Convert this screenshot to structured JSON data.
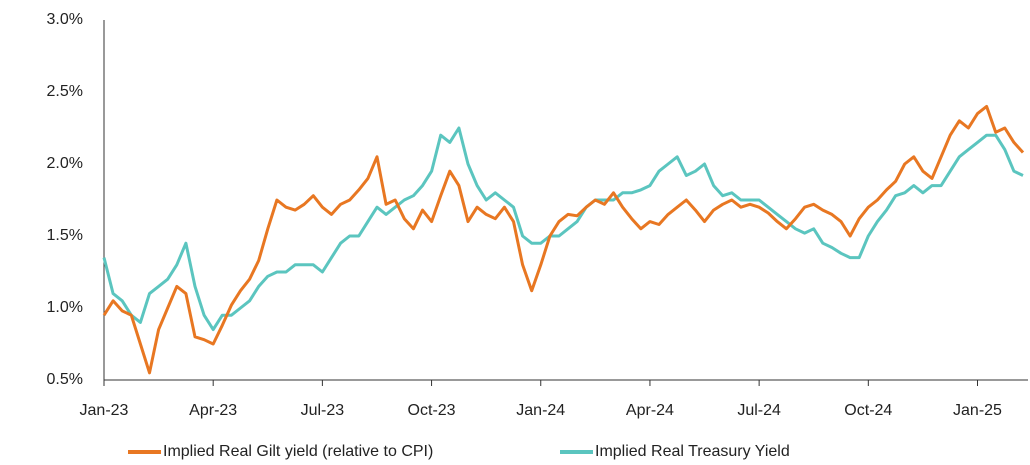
{
  "chart_data": {
    "type": "line",
    "categories": [
      "Jan-23",
      null,
      null,
      null,
      null,
      null,
      null,
      null,
      null,
      null,
      null,
      null,
      "Apr-23",
      null,
      null,
      null,
      null,
      null,
      null,
      null,
      null,
      null,
      null,
      null,
      "Jul-23",
      null,
      null,
      null,
      null,
      null,
      null,
      null,
      null,
      null,
      null,
      null,
      "Oct-23",
      null,
      null,
      null,
      null,
      null,
      null,
      null,
      null,
      null,
      null,
      null,
      "Jan-24",
      null,
      null,
      null,
      null,
      null,
      null,
      null,
      null,
      null,
      null,
      null,
      "Apr-24",
      null,
      null,
      null,
      null,
      null,
      null,
      null,
      null,
      null,
      null,
      null,
      "Jul-24",
      null,
      null,
      null,
      null,
      null,
      null,
      null,
      null,
      null,
      null,
      null,
      "Oct-24",
      null,
      null,
      null,
      null,
      null,
      null,
      null,
      null,
      null,
      null,
      null,
      "Jan-25",
      null,
      null,
      null,
      null,
      null
    ],
    "series": [
      {
        "name": "Implied Real Gilt yield (relative to CPI)",
        "color": "#e87722",
        "values": [
          0.95,
          1.05,
          0.98,
          0.95,
          0.75,
          0.55,
          0.85,
          1.0,
          1.15,
          1.1,
          0.8,
          0.78,
          0.75,
          0.88,
          1.02,
          1.12,
          1.2,
          1.33,
          1.55,
          1.75,
          1.7,
          1.68,
          1.72,
          1.78,
          1.7,
          1.65,
          1.72,
          1.75,
          1.82,
          1.9,
          2.05,
          1.72,
          1.75,
          1.62,
          1.55,
          1.68,
          1.6,
          1.78,
          1.95,
          1.85,
          1.6,
          1.7,
          1.65,
          1.62,
          1.7,
          1.6,
          1.3,
          1.12,
          1.3,
          1.5,
          1.6,
          1.65,
          1.64,
          1.7,
          1.75,
          1.72,
          1.8,
          1.7,
          1.62,
          1.55,
          1.6,
          1.58,
          1.65,
          1.7,
          1.75,
          1.68,
          1.6,
          1.68,
          1.72,
          1.75,
          1.7,
          1.72,
          1.7,
          1.66,
          1.6,
          1.55,
          1.62,
          1.7,
          1.72,
          1.68,
          1.65,
          1.6,
          1.5,
          1.62,
          1.7,
          1.75,
          1.82,
          1.88,
          2.0,
          2.05,
          1.95,
          1.9,
          2.05,
          2.2,
          2.3,
          2.25,
          2.35,
          2.4,
          2.22,
          2.25,
          2.15,
          2.08
        ]
      },
      {
        "name": "Implied Real Treasury Yield",
        "color": "#5bc5bf",
        "values": [
          1.35,
          1.1,
          1.05,
          0.95,
          0.9,
          1.1,
          1.15,
          1.2,
          1.3,
          1.45,
          1.15,
          0.95,
          0.85,
          0.95,
          0.95,
          1.0,
          1.05,
          1.15,
          1.22,
          1.25,
          1.25,
          1.3,
          1.3,
          1.3,
          1.25,
          1.35,
          1.45,
          1.5,
          1.5,
          1.6,
          1.7,
          1.65,
          1.7,
          1.75,
          1.78,
          1.85,
          1.95,
          2.2,
          2.15,
          2.25,
          2.0,
          1.85,
          1.75,
          1.8,
          1.75,
          1.7,
          1.5,
          1.45,
          1.45,
          1.5,
          1.5,
          1.55,
          1.6,
          1.7,
          1.75,
          1.75,
          1.75,
          1.8,
          1.8,
          1.82,
          1.85,
          1.95,
          2.0,
          2.05,
          1.92,
          1.95,
          2.0,
          1.85,
          1.78,
          1.8,
          1.75,
          1.75,
          1.75,
          1.7,
          1.65,
          1.6,
          1.55,
          1.52,
          1.55,
          1.45,
          1.42,
          1.38,
          1.35,
          1.35,
          1.5,
          1.6,
          1.68,
          1.78,
          1.8,
          1.85,
          1.8,
          1.85,
          1.85,
          1.95,
          2.05,
          2.1,
          2.15,
          2.2,
          2.2,
          2.1,
          1.95,
          1.92
        ]
      }
    ],
    "ylim": [
      0.5,
      3.0
    ],
    "yticks": [
      {
        "value": 0.5,
        "label": "0.5%"
      },
      {
        "value": 1.0,
        "label": "1.0%"
      },
      {
        "value": 1.5,
        "label": "1.5%"
      },
      {
        "value": 2.0,
        "label": "2.0%"
      },
      {
        "value": 2.5,
        "label": "2.5%"
      },
      {
        "value": 3.0,
        "label": "3.0%"
      }
    ],
    "grid": false,
    "legend": "bottom"
  }
}
